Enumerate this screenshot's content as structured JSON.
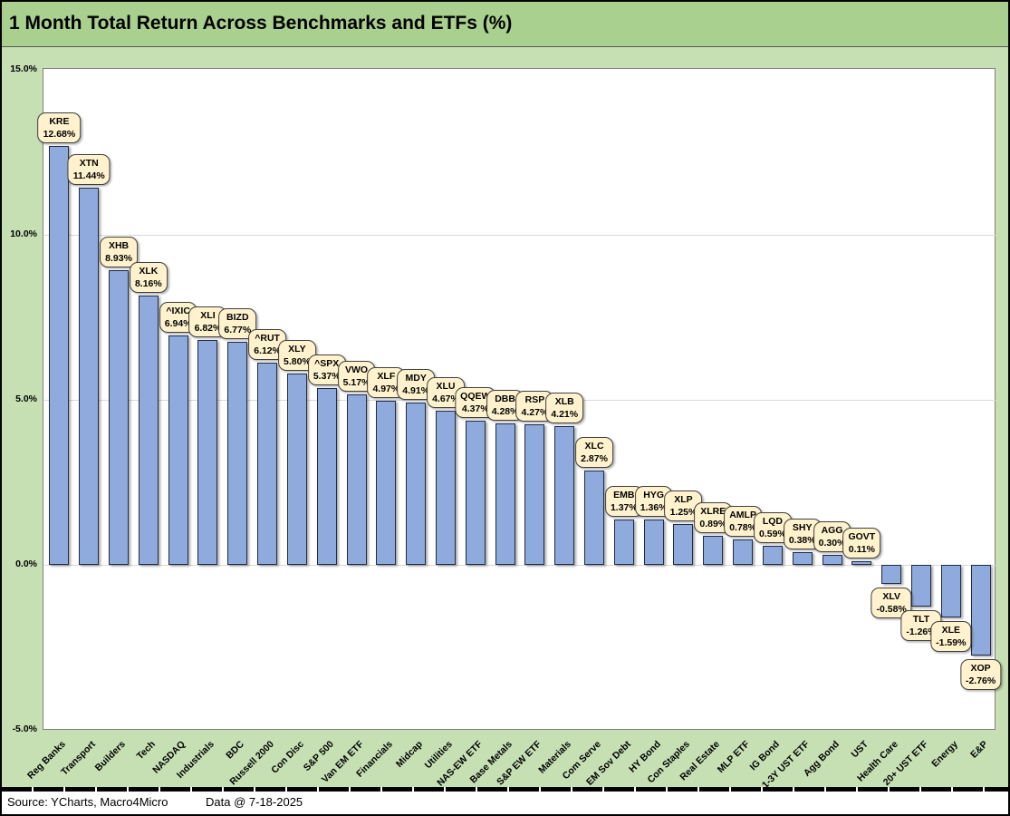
{
  "window": {
    "title_bar": "1 Month Total Return Across Benchmarks and ETFs (%)"
  },
  "footer": {
    "source": "Source: YCharts, Macro4Micro",
    "data_date": "Data @ 7-18-2025"
  },
  "chart_data": {
    "type": "bar",
    "title": "1 Month Total Return Across Benchmarks and ETFs (%)",
    "xlabel": "",
    "ylabel": "",
    "ylim": [
      -5,
      15
    ],
    "grid": true,
    "legend_position": "none",
    "y_ticks": [
      "15.0%",
      "10.0%",
      "5.0%",
      "0.0%",
      "-5.0%"
    ],
    "categories": [
      "Reg Banks",
      "Transport",
      "Builders",
      "Tech",
      "NASDAQ",
      "Industrials",
      "BDC",
      "Russell 2000",
      "Con Disc",
      "S&P 500",
      "Van EM ETF",
      "Financials",
      "Midcap",
      "Utilities",
      "NAS-EW ETF",
      "Base Metals",
      "S&P EW ETF",
      "Materials",
      "Com Serve",
      "EM Sov Debt",
      "HY Bond",
      "Con Staples",
      "Real Estate",
      "MLP ETF",
      "IG Bond",
      "1-3Y UST ETF",
      "Agg Bond",
      "UST",
      "Health Care",
      "20+ UST ETF",
      "Energy",
      "E&P"
    ],
    "series": [
      {
        "name": "1 Month Total Return",
        "tickers": [
          "KRE",
          "XTN",
          "XHB",
          "XLK",
          "^IXIC",
          "XLI",
          "BIZD",
          "^RUT",
          "XLY",
          "^SPX",
          "VWO",
          "XLF",
          "MDY",
          "XLU",
          "QQEW",
          "DBB",
          "RSP",
          "XLB",
          "XLC",
          "EMB",
          "HYG",
          "XLP",
          "XLRE",
          "AMLP",
          "LQD",
          "SHY",
          "AGG",
          "GOVT",
          "XLV",
          "TLT",
          "XLE",
          "XOP"
        ],
        "values": [
          12.68,
          11.44,
          8.93,
          8.16,
          6.94,
          6.82,
          6.77,
          6.12,
          5.8,
          5.37,
          5.17,
          4.97,
          4.91,
          4.67,
          4.37,
          4.28,
          4.27,
          4.21,
          2.87,
          1.37,
          1.36,
          1.25,
          0.89,
          0.78,
          0.59,
          0.38,
          0.3,
          0.11,
          -0.58,
          -1.26,
          -1.59,
          -2.76
        ],
        "labels": [
          "12.68%",
          "11.44%",
          "8.93%",
          "8.16%",
          "6.94%",
          "6.82%",
          "6.77%",
          "6.12%",
          "5.80%",
          "5.37%",
          "5.17%",
          "4.97%",
          "4.91%",
          "4.67%",
          "4.37%",
          "4.28%",
          "4.27%",
          "4.21%",
          "2.87%",
          "1.37%",
          "1.36%",
          "1.25%",
          "0.89%",
          "0.78%",
          "0.59%",
          "0.38%",
          "0.30%",
          "0.11%",
          "-0.58%",
          "-1.26%",
          "-1.59%",
          "-2.76%"
        ]
      }
    ],
    "colors": {
      "title_bg": "#a9d08e",
      "chart_bg": "#c6e0b4",
      "plot_bg": "#ffffff",
      "gridline": "#d9d9d9",
      "bar_fill": "#8faadc",
      "bar_border": "#222b44",
      "callout_fill": "#fff2cc",
      "callout_border": "#404040"
    }
  }
}
